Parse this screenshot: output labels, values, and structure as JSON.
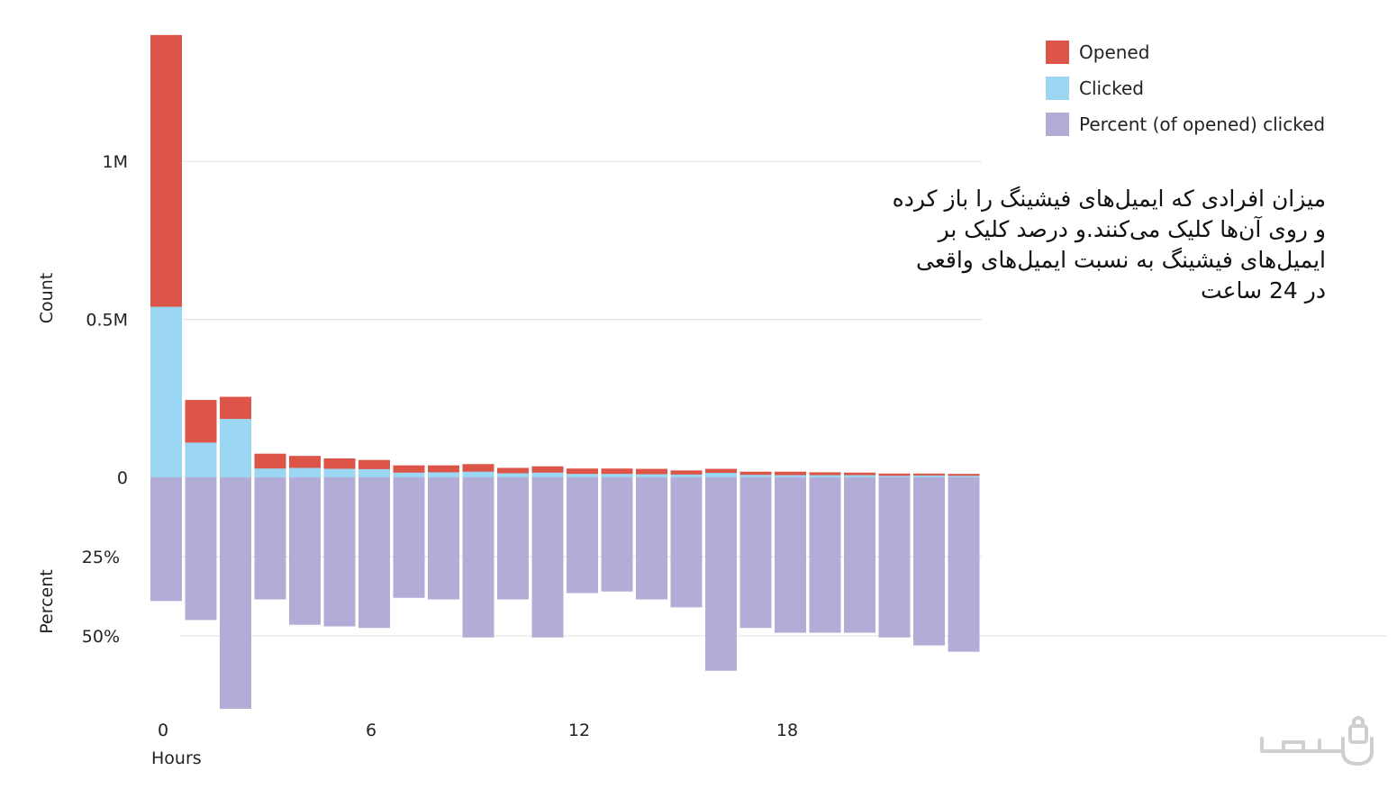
{
  "chart_data": {
    "type": "bar",
    "title": "",
    "xlabel": "Hours",
    "x_ticks": [
      "0",
      "6",
      "12",
      "18"
    ],
    "x_tick_hours": [
      0,
      6,
      12,
      18
    ],
    "hours": [
      0,
      1,
      2,
      3,
      4,
      5,
      6,
      7,
      8,
      9,
      10,
      11,
      12,
      13,
      14,
      15,
      16,
      17,
      18,
      19,
      20,
      21,
      22,
      23
    ],
    "top_panel": {
      "ylabel": "Count",
      "ylim": [
        0,
        1400000
      ],
      "y_ticks": [
        0,
        500000,
        1000000
      ],
      "y_tick_labels": [
        "0",
        "0.5M",
        "1M"
      ],
      "series": [
        {
          "name": "Opened",
          "color": "#dd5549",
          "values": [
            1400000,
            245000,
            255000,
            75000,
            68000,
            60000,
            55000,
            38000,
            38000,
            42000,
            30000,
            35000,
            28000,
            28000,
            27000,
            22000,
            27000,
            18000,
            18000,
            16000,
            15000,
            12000,
            12000,
            11000
          ]
        },
        {
          "name": "Clicked",
          "color": "#9bd7f3",
          "values": [
            540000,
            110000,
            185000,
            28000,
            30000,
            27000,
            26000,
            15000,
            16000,
            18000,
            13000,
            15000,
            11000,
            11000,
            10000,
            9000,
            14000,
            8000,
            7000,
            7000,
            7000,
            5000,
            6000,
            5000
          ]
        }
      ]
    },
    "bottom_panel": {
      "ylabel": "Percent",
      "ylim": [
        0,
        65
      ],
      "y_ticks": [
        25,
        50
      ],
      "y_tick_labels": [
        "25%",
        "50%"
      ],
      "inverted": true,
      "series": [
        {
          "name": "Percent (of opened) clicked",
          "color": "#b3acd6",
          "values": [
            39,
            45,
            73,
            38.5,
            46.5,
            47,
            47.5,
            38,
            38.5,
            50.5,
            38.5,
            50.5,
            36.5,
            36,
            38.5,
            41,
            61,
            47.5,
            49,
            49,
            49,
            50.5,
            53,
            55
          ]
        }
      ]
    },
    "legend": [
      "Opened",
      "Clicked",
      "Percent (of opened) clicked"
    ],
    "legend_position": "top-right",
    "grid": true
  },
  "caption": {
    "lines": [
      "میزان افرادی که ایمیل‌های فیشینگ را باز کرده",
      "و روی آن‌ها کلیک می‌کنند.و درصد کلیک بر",
      "ایمیل‌های فیشینگ به نسبت ایمیل‌های واقعی",
      "در 24 ساعت"
    ]
  },
  "watermark": {
    "icon": "logo-watermark"
  }
}
